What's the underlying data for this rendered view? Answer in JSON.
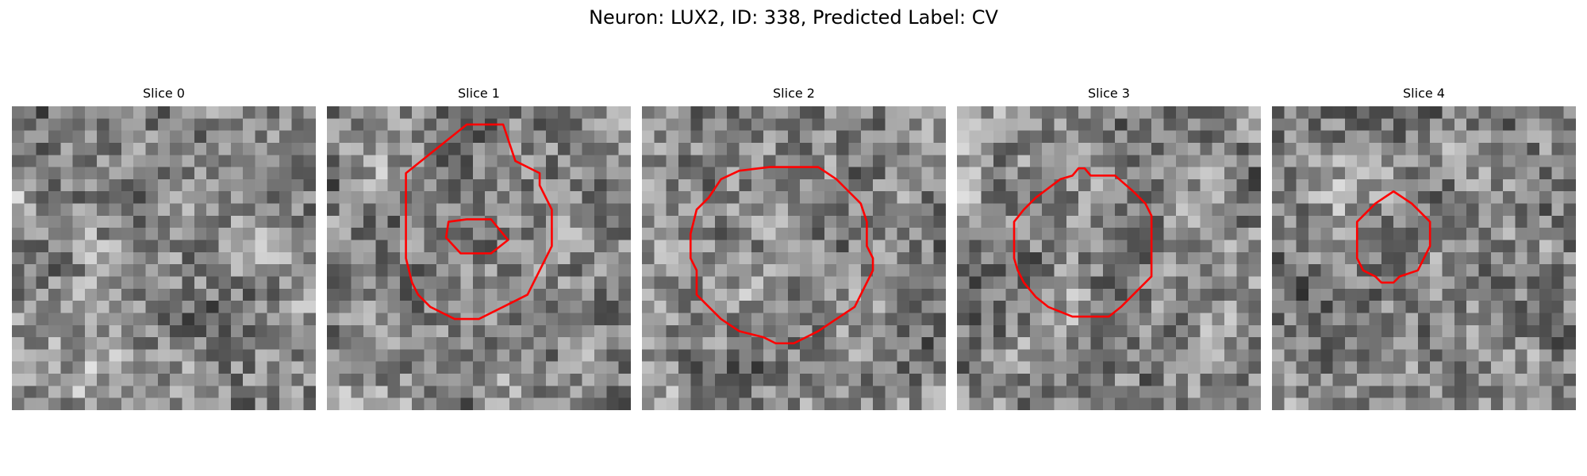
{
  "figure": {
    "title": "Neuron: LUX2, ID: 338, Predicted Label: CV",
    "contour_color": "#ff0000",
    "colormap": "gray"
  },
  "panels": [
    {
      "title": "Slice 0",
      "seed": 11,
      "contours": []
    },
    {
      "title": "Slice 1",
      "seed": 23,
      "contours": [
        [
          [
            14,
            1
          ],
          [
            11,
            1
          ],
          [
            6,
            5
          ],
          [
            6,
            12
          ],
          [
            6.5,
            14
          ],
          [
            7,
            15
          ],
          [
            8,
            16
          ],
          [
            10,
            17
          ],
          [
            12,
            17
          ],
          [
            14,
            16
          ],
          [
            16,
            15
          ],
          [
            17,
            13
          ],
          [
            18,
            11
          ],
          [
            18,
            8
          ],
          [
            17,
            6
          ],
          [
            17,
            5
          ],
          [
            15,
            4
          ],
          [
            14,
            1
          ]
        ],
        [
          [
            9.5,
            9.0
          ],
          [
            11,
            8.8
          ],
          [
            13,
            8.8
          ],
          [
            14.4,
            10.5
          ],
          [
            13,
            11.6
          ],
          [
            10.5,
            11.6
          ],
          [
            9.3,
            10.3
          ],
          [
            9.5,
            9.0
          ]
        ]
      ]
    },
    {
      "title": "Slice 2",
      "seed": 37,
      "contours": [
        [
          [
            10,
            4.5
          ],
          [
            12,
            4.5
          ],
          [
            14,
            4.5
          ],
          [
            15.5,
            5.5
          ],
          [
            16.5,
            6.5
          ],
          [
            17.5,
            7.5
          ],
          [
            18,
            9
          ],
          [
            18,
            11
          ],
          [
            18.5,
            12
          ],
          [
            18.5,
            13
          ],
          [
            18,
            14
          ],
          [
            17.5,
            15
          ],
          [
            17,
            16
          ],
          [
            15.5,
            17
          ],
          [
            14,
            18
          ],
          [
            12,
            19
          ],
          [
            10.5,
            19
          ],
          [
            9.5,
            18.5
          ],
          [
            7.5,
            18
          ],
          [
            6,
            17
          ],
          [
            5,
            16
          ],
          [
            4,
            15
          ],
          [
            4,
            13
          ],
          [
            3.5,
            12
          ],
          [
            3.5,
            10
          ],
          [
            4,
            8
          ],
          [
            5,
            7
          ],
          [
            6,
            5.5
          ],
          [
            7.5,
            4.8
          ],
          [
            10,
            4.5
          ]
        ]
      ]
    },
    {
      "title": "Slice 3",
      "seed": 51,
      "contours": [
        [
          [
            9,
            5.2
          ],
          [
            9.5,
            4.6
          ],
          [
            10,
            4.6
          ],
          [
            10.5,
            5.2
          ],
          [
            12.5,
            5.2
          ],
          [
            14,
            6.5
          ],
          [
            15,
            7.5
          ],
          [
            15.5,
            8.5
          ],
          [
            15.5,
            9.5
          ],
          [
            15.5,
            13.5
          ],
          [
            15,
            14
          ],
          [
            14,
            15
          ],
          [
            13,
            16
          ],
          [
            12,
            16.8
          ],
          [
            9,
            16.8
          ],
          [
            7,
            16
          ],
          [
            6,
            15.2
          ],
          [
            5,
            14
          ],
          [
            4.5,
            13
          ],
          [
            4.2,
            12
          ],
          [
            4.2,
            9
          ],
          [
            5,
            8
          ],
          [
            6,
            7
          ],
          [
            8,
            5.5
          ],
          [
            9,
            5.2
          ]
        ]
      ]
    },
    {
      "title": "Slice 4",
      "seed": 67,
      "contours": [
        [
          [
            9.5,
            6.5
          ],
          [
            11,
            7.5
          ],
          [
            12.5,
            9
          ],
          [
            12.5,
            11
          ],
          [
            12,
            12
          ],
          [
            11.5,
            13
          ],
          [
            10,
            13.5
          ],
          [
            9.5,
            14
          ],
          [
            8.5,
            14
          ],
          [
            8,
            13.5
          ],
          [
            7,
            13
          ],
          [
            6.5,
            12
          ],
          [
            6.5,
            10
          ],
          [
            6.5,
            9
          ],
          [
            8,
            7.5
          ],
          [
            9.5,
            6.5
          ]
        ]
      ]
    }
  ]
}
